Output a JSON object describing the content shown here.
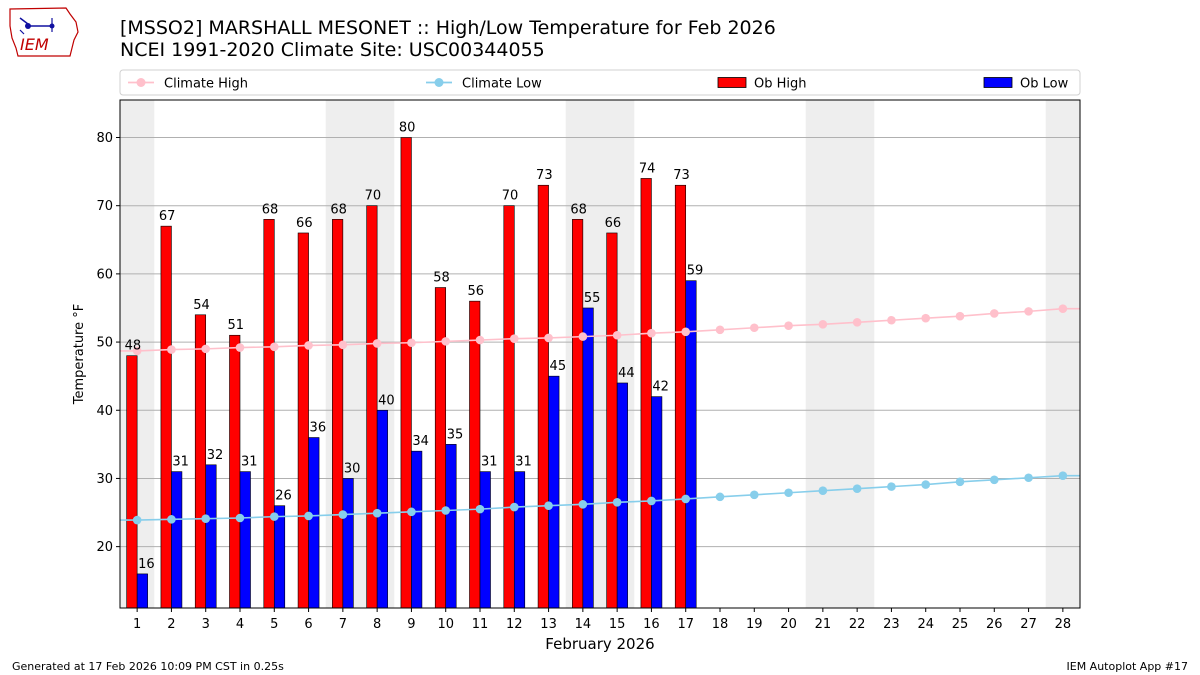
{
  "header": {
    "title": "[MSSO2] MARSHALL MESONET :: High/Low Temperature for Feb 2026",
    "subtitle": "NCEI 1991-2020 Climate Site: USC00344055"
  },
  "logo": {
    "text": "IEM",
    "icon": "iowa-state-outline-logo"
  },
  "footer": {
    "left": "Generated at 17 Feb 2026 10:09 PM CST in 0.25s",
    "right": "IEM Autoplot App #17"
  },
  "colors": {
    "climate_high": "#FFC0CB",
    "climate_low": "#87CEEB",
    "ob_high": "#FF0000",
    "ob_low": "#0000FF",
    "weekend_shade": "#EEEEEE",
    "grid": "#B0B0B0"
  },
  "chart_data": {
    "type": "bar",
    "xlabel": "February 2026",
    "ylabel": "Temperature °F",
    "ylim": [
      11,
      85.5
    ],
    "yticks": [
      20,
      30,
      40,
      50,
      60,
      70,
      80
    ],
    "grid": "horizontal",
    "legend_position": "top",
    "legend": [
      "Climate High",
      "Climate Low",
      "Ob High",
      "Ob Low"
    ],
    "days": [
      1,
      2,
      3,
      4,
      5,
      6,
      7,
      8,
      9,
      10,
      11,
      12,
      13,
      14,
      15,
      16,
      17,
      18,
      19,
      20,
      21,
      22,
      23,
      24,
      25,
      26,
      27,
      28
    ],
    "weekend_days": [
      1,
      7,
      8,
      14,
      15,
      21,
      22,
      28
    ],
    "series": [
      {
        "name": "Climate High",
        "kind": "line",
        "values": [
          48.7,
          48.9,
          49.0,
          49.2,
          49.3,
          49.5,
          49.6,
          49.8,
          49.9,
          50.1,
          50.3,
          50.5,
          50.6,
          50.8,
          51.0,
          51.3,
          51.5,
          51.8,
          52.1,
          52.4,
          52.6,
          52.9,
          53.2,
          53.5,
          53.8,
          54.2,
          54.5,
          54.9
        ]
      },
      {
        "name": "Climate Low",
        "kind": "line",
        "values": [
          23.9,
          24.0,
          24.1,
          24.2,
          24.4,
          24.5,
          24.7,
          24.9,
          25.1,
          25.3,
          25.5,
          25.8,
          26.0,
          26.2,
          26.5,
          26.7,
          27.0,
          27.3,
          27.6,
          27.9,
          28.2,
          28.5,
          28.8,
          29.1,
          29.5,
          29.8,
          30.1,
          30.4
        ]
      },
      {
        "name": "Ob High",
        "kind": "bar",
        "values": [
          48,
          67,
          54,
          51,
          68,
          66,
          68,
          70,
          80,
          58,
          56,
          70,
          73,
          68,
          66,
          74,
          73
        ],
        "labels": [
          "48",
          "67",
          "54",
          "51",
          "68",
          "66",
          "68",
          "70",
          "80",
          "58",
          "56",
          "70",
          "73",
          "68",
          "66",
          "74",
          "73"
        ]
      },
      {
        "name": "Ob Low",
        "kind": "bar",
        "values": [
          16,
          31,
          32,
          31,
          26,
          36,
          30,
          40,
          34,
          35,
          31,
          31,
          45,
          55,
          44,
          42,
          59
        ],
        "labels": [
          "16",
          "31",
          "32",
          "31",
          "26",
          "36",
          "30",
          "40",
          "34",
          "35",
          "31",
          "31",
          "45",
          "55",
          "44",
          "42",
          "59"
        ]
      }
    ]
  }
}
